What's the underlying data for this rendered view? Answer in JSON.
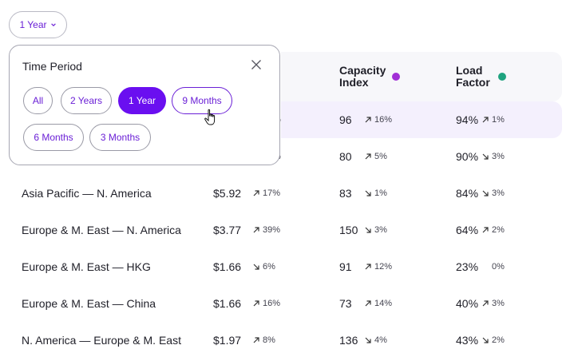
{
  "dropdown": {
    "label": "1 Year",
    "icon": "chevron-down-icon"
  },
  "popover": {
    "title": "Time Period",
    "options": [
      "All",
      "2 Years",
      "1 Year",
      "9 Months",
      "6 Months",
      "3 Months"
    ],
    "selected": "1 Year",
    "hovered": "9 Months"
  },
  "columns": {
    "capacity": {
      "label": "Capacity Index",
      "dot_color": "#a12fd6"
    },
    "load": {
      "label": "Load Factor",
      "dot_color": "#1fa37f"
    }
  },
  "rows": [
    {
      "route": "",
      "price": "",
      "price_change": "",
      "price_dir": "",
      "capacity": "96",
      "capacity_change": "16%",
      "capacity_dir": "up",
      "load": "94%",
      "load_change": "1%",
      "load_dir": "up",
      "partial_price_change": "%"
    },
    {
      "route": "",
      "price": "",
      "price_change": "",
      "price_dir": "",
      "capacity": "80",
      "capacity_change": "5%",
      "capacity_dir": "up",
      "load": "90%",
      "load_change": "3%",
      "load_dir": "down",
      "partial_price_change": "%"
    },
    {
      "route": "Asia Pacific — N. America",
      "price": "$5.92",
      "price_change": "17%",
      "price_dir": "up",
      "capacity": "83",
      "capacity_change": "1%",
      "capacity_dir": "down",
      "load": "84%",
      "load_change": "3%",
      "load_dir": "down"
    },
    {
      "route": "Europe & M. East — N. America",
      "price": "$3.77",
      "price_change": "39%",
      "price_dir": "up",
      "capacity": "150",
      "capacity_change": "3%",
      "capacity_dir": "down",
      "load": "64%",
      "load_change": "2%",
      "load_dir": "up"
    },
    {
      "route": "Europe & M. East — HKG",
      "price": "$1.66",
      "price_change": "6%",
      "price_dir": "down",
      "capacity": "91",
      "capacity_change": "12%",
      "capacity_dir": "up",
      "load": "23%",
      "load_change": "0%",
      "load_dir": "none"
    },
    {
      "route": "Europe & M. East — China",
      "price": "$1.66",
      "price_change": "16%",
      "price_dir": "up",
      "capacity": "73",
      "capacity_change": "14%",
      "capacity_dir": "up",
      "load": "40%",
      "load_change": "3%",
      "load_dir": "up"
    },
    {
      "route": "N. America — Europe & M. East",
      "price": "$1.97",
      "price_change": "8%",
      "price_dir": "up",
      "capacity": "136",
      "capacity_change": "4%",
      "capacity_dir": "down",
      "load": "43%",
      "load_change": "2%",
      "load_dir": "down"
    }
  ]
}
